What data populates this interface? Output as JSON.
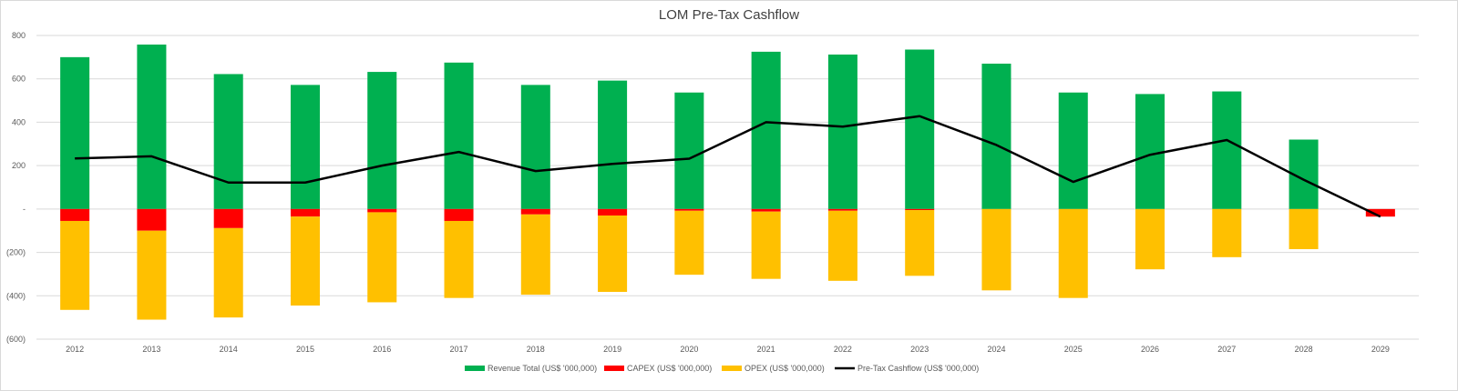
{
  "chart_data": {
    "type": "bar",
    "title": "LOM Pre-Tax Cashflow",
    "categories": [
      "2012",
      "2013",
      "2014",
      "2015",
      "2016",
      "2017",
      "2018",
      "2019",
      "2020",
      "2021",
      "2022",
      "2023",
      "2024",
      "2025",
      "2026",
      "2027",
      "2028",
      "2029"
    ],
    "series": [
      {
        "name": "Revenue Total (US$ '000,000)",
        "kind": "bar",
        "color": "#00b050",
        "values": [
          700,
          758,
          622,
          572,
          632,
          675,
          572,
          592,
          537,
          725,
          712,
          735,
          670,
          537,
          530,
          542,
          320,
          0
        ]
      },
      {
        "name": "CAPEX (US$ '000,000)",
        "kind": "bar",
        "color": "#ff0000",
        "values": [
          -55,
          -100,
          -88,
          -35,
          -15,
          -55,
          -25,
          -30,
          -8,
          -12,
          -8,
          -5,
          0,
          0,
          0,
          0,
          0,
          -35
        ]
      },
      {
        "name": "OPEX (US$ '000,000)",
        "kind": "bar",
        "color": "#ffc000",
        "values": [
          -410,
          -410,
          -412,
          -410,
          -415,
          -355,
          -370,
          -352,
          -295,
          -310,
          -323,
          -303,
          -375,
          -410,
          -278,
          -222,
          -185,
          0
        ]
      },
      {
        "name": "Pre-Tax Cashflow (US$ '000,000)",
        "kind": "line",
        "color": "#000000",
        "values": [
          233,
          243,
          122,
          122,
          200,
          263,
          175,
          208,
          232,
          400,
          380,
          428,
          295,
          125,
          250,
          318,
          135,
          -35
        ]
      }
    ],
    "ylim": [
      -600,
      800
    ],
    "yticks": [
      {
        "value": 800,
        "label": "800"
      },
      {
        "value": 600,
        "label": "600"
      },
      {
        "value": 400,
        "label": "400"
      },
      {
        "value": 200,
        "label": "200"
      },
      {
        "value": 0,
        "label": "-"
      },
      {
        "value": -200,
        "label": "(200)"
      },
      {
        "value": -400,
        "label": "(400)"
      },
      {
        "value": -600,
        "label": "(600)"
      }
    ],
    "grid": true,
    "legend_position": "bottom",
    "gridline_color": "#d9d9d9"
  }
}
